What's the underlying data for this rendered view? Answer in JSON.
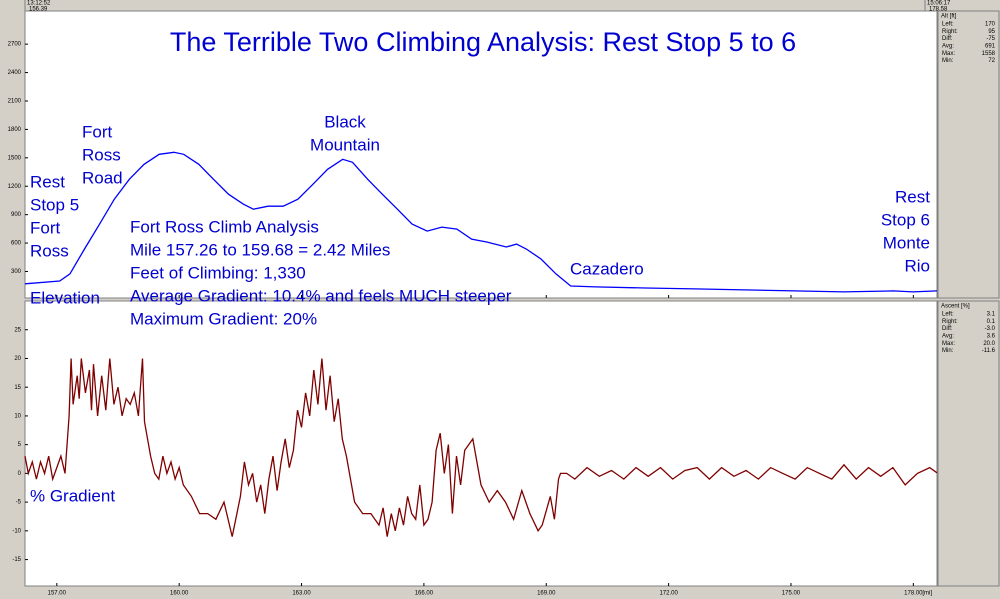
{
  "chart_data": [
    {
      "type": "line",
      "title": "The Terrible Two Climbing Analysis: Rest Stop 5 to 6",
      "ylim": [
        20,
        3050
      ],
      "yticks": [
        300,
        600,
        900,
        1200,
        1500,
        1800,
        2100,
        2400,
        2700
      ],
      "series": [
        {
          "name": "Elevation",
          "color": "#0000ff",
          "x": [
            156.22,
            157.07,
            157.32,
            157.68,
            158.05,
            158.41,
            158.78,
            159.14,
            159.51,
            159.87,
            160.11,
            160.48,
            160.84,
            161.21,
            161.57,
            161.82,
            162.18,
            162.55,
            162.91,
            163.28,
            163.64,
            164.01,
            164.25,
            164.62,
            164.98,
            165.35,
            165.71,
            166.08,
            166.44,
            166.81,
            167.17,
            167.54,
            168.02,
            168.27,
            168.51,
            168.87,
            169.24,
            169.6,
            170.21,
            171.43,
            172.64,
            173.86,
            175.08,
            176.29,
            177.51,
            177.99,
            178.58
          ],
          "values": [
            170,
            200,
            274,
            537,
            800,
            1063,
            1274,
            1432,
            1537,
            1558,
            1537,
            1432,
            1274,
            1116,
            1011,
            958,
            989,
            989,
            1063,
            1221,
            1379,
            1484,
            1453,
            1274,
            1116,
            958,
            800,
            726,
            768,
            747,
            642,
            611,
            558,
            589,
            537,
            432,
            274,
            147,
            137,
            126,
            116,
            105,
            95,
            84,
            95,
            84,
            95
          ]
        }
      ],
      "annotations": [
        [
          "Rest",
          "Stop 5",
          "Fort",
          "Ross"
        ],
        [
          "Fort",
          "Ross",
          "Road"
        ],
        [
          "Black",
          "Mountain"
        ],
        [
          "Fort Ross Climb Analysis",
          "Mile 157.26 to 159.68 = 2.42 Miles",
          "Feet of Climbing: 1,330",
          "Average Gradient: 10.4% and feels MUCH steeper",
          "Maximum Gradient: 20%"
        ],
        [
          "Cazadero"
        ],
        [
          "Rest",
          "Stop 6",
          "Monte",
          "Rio"
        ]
      ],
      "stats": {
        "label": "Alt [ft]",
        "rows": [
          {
            "name": "Left:",
            "value": 170
          },
          {
            "name": "Right:",
            "value": 95
          },
          {
            "name": "Diff:",
            "value": -75
          },
          {
            "name": "Avg:",
            "value": 691
          },
          {
            "name": "Max:",
            "value": 1558
          },
          {
            "name": "Min:",
            "value": 72
          }
        ]
      }
    },
    {
      "type": "line",
      "ylim": [
        -19.6,
        30
      ],
      "yticks": [
        25,
        20,
        15,
        10,
        5,
        0,
        -5,
        -10,
        -15
      ],
      "series": [
        {
          "name": "% Gradient",
          "color": "#800000",
          "x": [
            156.22,
            156.3,
            156.4,
            156.5,
            156.6,
            156.7,
            156.8,
            156.9,
            157.0,
            157.1,
            157.2,
            157.3,
            157.35,
            157.4,
            157.5,
            157.55,
            157.6,
            157.7,
            157.8,
            157.85,
            157.9,
            158.0,
            158.1,
            158.2,
            158.3,
            158.4,
            158.5,
            158.6,
            158.7,
            158.8,
            158.9,
            159.0,
            159.1,
            159.15,
            159.3,
            159.4,
            159.5,
            159.6,
            159.7,
            159.8,
            159.9,
            160.0,
            160.1,
            160.3,
            160.5,
            160.7,
            160.9,
            161.1,
            161.3,
            161.5,
            161.6,
            161.7,
            161.8,
            161.9,
            162.0,
            162.1,
            162.2,
            162.3,
            162.4,
            162.5,
            162.6,
            162.7,
            162.8,
            162.9,
            163.0,
            163.1,
            163.2,
            163.3,
            163.4,
            163.5,
            163.6,
            163.7,
            163.8,
            163.9,
            164.0,
            164.1,
            164.3,
            164.5,
            164.7,
            164.9,
            165.0,
            165.1,
            165.2,
            165.3,
            165.4,
            165.5,
            165.6,
            165.7,
            165.8,
            165.9,
            166.0,
            166.1,
            166.2,
            166.3,
            166.4,
            166.5,
            166.6,
            166.7,
            166.8,
            166.9,
            167.0,
            167.2,
            167.4,
            167.6,
            167.8,
            168.0,
            168.2,
            168.4,
            168.6,
            168.8,
            168.9,
            169.1,
            169.2,
            169.3,
            169.35,
            169.5,
            169.7,
            170.0,
            170.3,
            170.6,
            170.9,
            171.2,
            171.5,
            171.8,
            172.1,
            172.4,
            172.7,
            173.0,
            173.3,
            173.6,
            173.9,
            174.2,
            174.5,
            174.8,
            175.1,
            175.4,
            175.7,
            176.0,
            176.3,
            176.6,
            176.9,
            177.2,
            177.5,
            177.8,
            178.1,
            178.4,
            178.58
          ],
          "values": [
            3,
            0,
            2,
            -1,
            2,
            0,
            3,
            -1,
            1,
            3,
            0,
            10,
            20,
            12,
            17,
            13,
            20,
            14,
            18,
            11,
            19,
            10,
            17,
            11,
            20,
            12,
            15,
            10,
            13,
            12,
            14,
            10,
            20,
            9,
            3,
            0,
            -1,
            3,
            0,
            2,
            -1,
            1,
            -2,
            -4,
            -7,
            -7,
            -8,
            -5,
            -11,
            -4,
            2,
            -2,
            0,
            -5,
            -2,
            -7,
            -1,
            3,
            -3,
            2,
            6,
            1,
            4,
            11,
            8,
            14,
            10,
            18,
            12,
            20,
            11,
            17,
            9,
            13,
            6,
            3,
            -5,
            -7,
            -7,
            -9,
            -6,
            -11,
            -7,
            -10,
            -6,
            -9,
            -4,
            -7,
            -8,
            -2,
            -9,
            -8,
            -5,
            4,
            7,
            0,
            5,
            -7,
            3,
            -2,
            4,
            6,
            -2,
            -5,
            -3,
            -5,
            -8,
            -3,
            -7,
            -10,
            -9,
            -4,
            -8,
            -1,
            0,
            0,
            -1,
            1,
            -0.5,
            0.5,
            -1,
            1,
            -0.5,
            1,
            -1,
            0.5,
            1,
            -1,
            1,
            -0.5,
            0.5,
            -1,
            1,
            0,
            -1,
            1,
            0,
            -1,
            1.5,
            -1,
            1,
            -0.5,
            1,
            -2,
            0,
            1,
            0.1
          ]
        }
      ],
      "stats": {
        "label": "Ascent [%]",
        "rows": [
          {
            "name": "Left:",
            "value": 3.1
          },
          {
            "name": "Right:",
            "value": 0.1
          },
          {
            "name": "Diff:",
            "value": {
              "value": -3,
              "label": "-3.0"
            }
          },
          {
            "name": "Avg:",
            "value": 3.6
          },
          {
            "name": "Max:",
            "value": {
              "value": 20,
              "label": "20.0"
            }
          },
          {
            "name": "Min:",
            "value": -11.6
          }
        ]
      }
    }
  ],
  "x_axis": {
    "xlim": [
      156.22,
      178.58
    ],
    "label": "[mi]",
    "xticks": [
      {
        "value": 157,
        "label": "157.00"
      },
      {
        "value": 160,
        "label": "160.00"
      },
      {
        "value": 163,
        "label": "163.00"
      },
      {
        "value": 166,
        "label": "166.00"
      },
      {
        "value": 169,
        "label": "169.00"
      },
      {
        "value": 172,
        "label": "172.00"
      },
      {
        "value": 175,
        "label": "175.00"
      },
      {
        "value": 178,
        "label": "178.00"
      }
    ]
  },
  "cursors": [
    {
      "time": "13:12:52",
      "mile": 156.39
    },
    {
      "time": "15:06:17",
      "mile": 178.58
    }
  ]
}
